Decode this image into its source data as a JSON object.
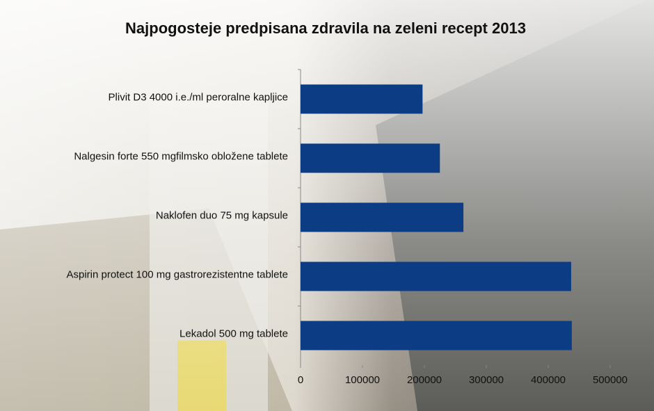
{
  "chart_data": {
    "type": "bar",
    "orientation": "horizontal",
    "title": "Najpogosteje predpisana zdravila na zeleni recept 2013",
    "categories": [
      "Plivit D3 4000 i.e./ml peroralne kapljice",
      "Nalgesin forte 550 mgfilmsko obložene tablete",
      "Naklofen duo 75 mg kapsule",
      "Aspirin protect 100 mg gastrorezistentne tablete",
      "Lekadol 500 mg tablete"
    ],
    "values": [
      197000,
      225000,
      263000,
      437000,
      438000
    ],
    "color": "#0b3c84",
    "xlim": [
      0,
      500000
    ],
    "xticks": [
      0,
      100000,
      200000,
      300000,
      400000,
      500000
    ]
  }
}
